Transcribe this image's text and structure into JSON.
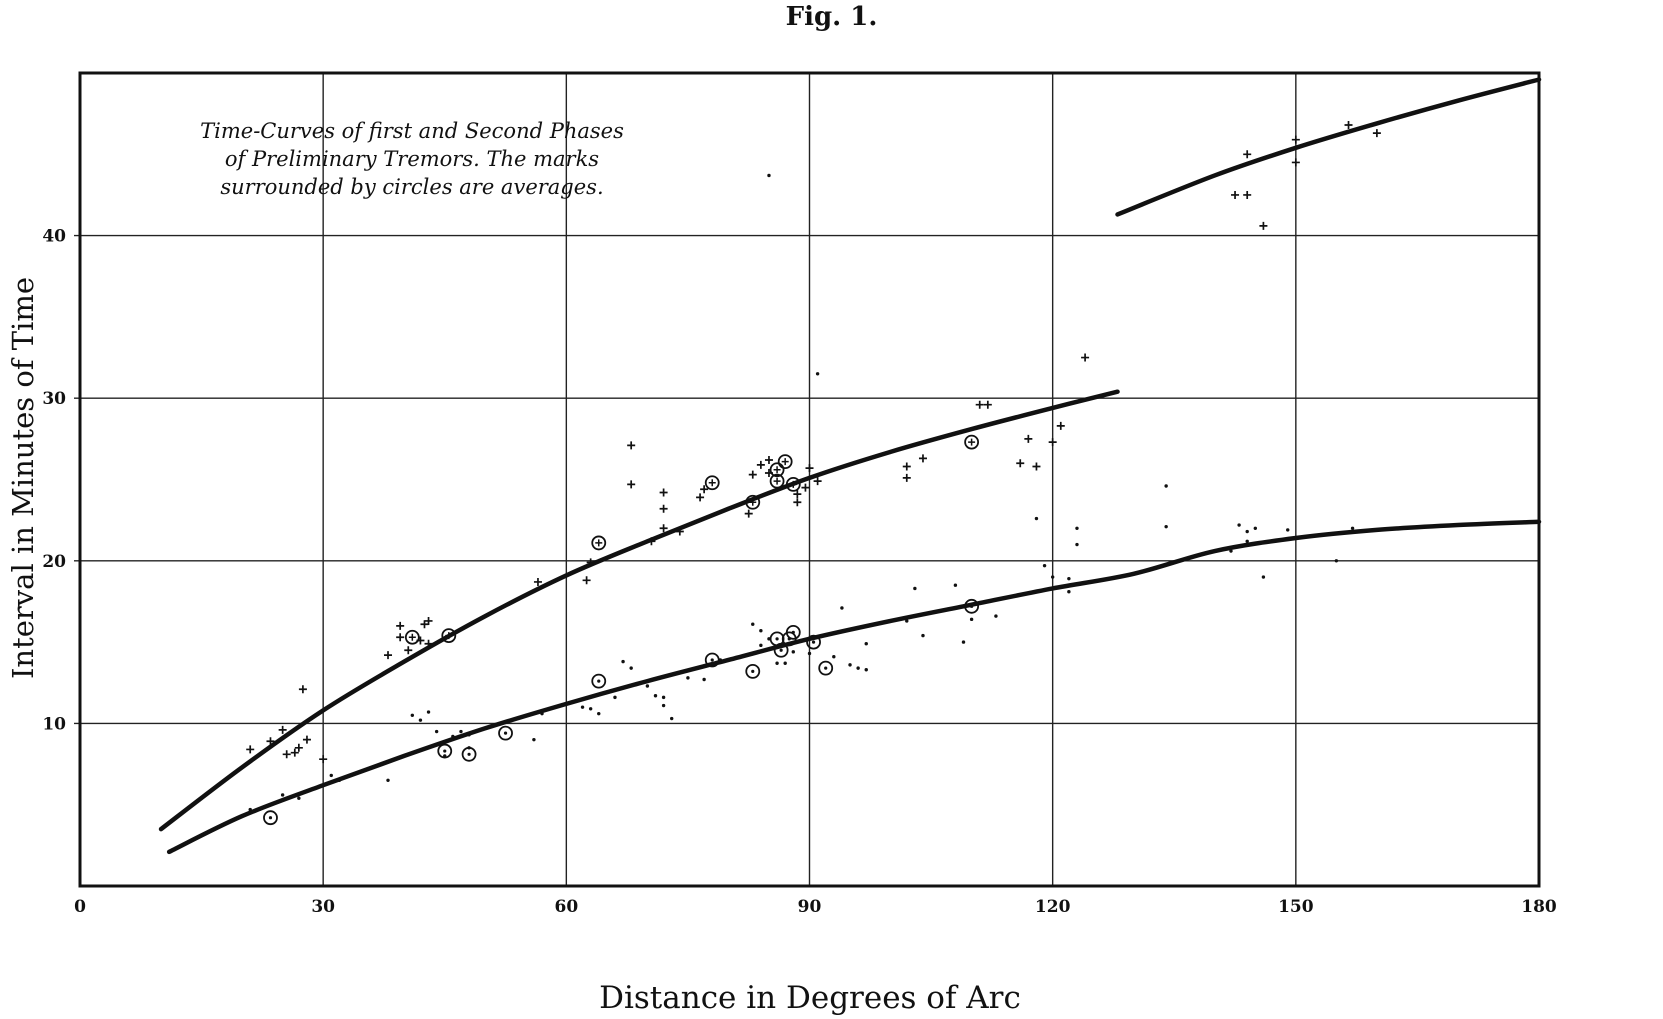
{
  "figure_label": "Fig. 1.",
  "chart_data": {
    "type": "scatter",
    "title": "",
    "annotation": [
      "Time-Curves of first and Second Phases",
      "of Preliminary Tremors.    The marks",
      "surrounded by circles are averages."
    ],
    "xlabel": "Distance in Degrees of Arc",
    "ylabel": "Interval in Minutes of Time",
    "xlim": [
      0,
      180
    ],
    "ylim": [
      0,
      50
    ],
    "x_ticks": [
      {
        "value": 0,
        "label": "0"
      },
      {
        "value": 30,
        "label": "30"
      },
      {
        "value": 60,
        "label": "60"
      },
      {
        "value": 90,
        "label": "90"
      },
      {
        "value": 120,
        "label": "120"
      },
      {
        "value": 150,
        "label": "150"
      },
      {
        "value": 180,
        "label": "180"
      }
    ],
    "y_ticks": [
      {
        "value": 10,
        "label": "10"
      },
      {
        "value": 20,
        "label": "20"
      },
      {
        "value": 30,
        "label": "30"
      },
      {
        "value": 40,
        "label": "40"
      }
    ],
    "grid": true,
    "curves": [
      {
        "id": "first-phase-curve",
        "x": [
          10,
          20,
          30,
          40,
          50,
          60,
          70,
          80,
          90,
          100,
          110,
          120,
          128
        ],
        "y": [
          3.5,
          7.3,
          10.8,
          13.8,
          16.6,
          19.1,
          21.2,
          23.2,
          25.1,
          26.7,
          28.1,
          29.4,
          30.4
        ]
      },
      {
        "id": "first-phase-late-curve",
        "x": [
          128,
          140,
          150,
          160,
          170,
          180
        ],
        "y": [
          41.3,
          43.7,
          45.4,
          46.9,
          48.3,
          49.6
        ]
      },
      {
        "id": "second-phase-curve",
        "x": [
          11,
          20,
          30,
          40,
          50,
          60,
          70,
          80,
          90,
          100,
          110,
          120,
          130,
          140,
          150,
          160,
          170,
          180
        ],
        "y": [
          2.1,
          4.3,
          6.2,
          8.0,
          9.7,
          11.2,
          12.6,
          13.9,
          15.2,
          16.3,
          17.3,
          18.3,
          19.2,
          20.6,
          21.4,
          21.9,
          22.2,
          22.4
        ]
      }
    ],
    "series": [
      {
        "marker": "plus",
        "points": [
          [
            21,
            8.4
          ],
          [
            23.5,
            8.9
          ],
          [
            25,
            9.6
          ],
          [
            25.5,
            8.1
          ],
          [
            26.5,
            8.2
          ],
          [
            27,
            8.5
          ],
          [
            27.5,
            12.1
          ],
          [
            28,
            9.0
          ],
          [
            30,
            7.8
          ],
          [
            38,
            14.2
          ],
          [
            39.5,
            15.3
          ],
          [
            39.5,
            16.0
          ],
          [
            40.5,
            14.5
          ],
          [
            42,
            15.1
          ],
          [
            42.5,
            16.1
          ],
          [
            43,
            16.3
          ],
          [
            43,
            14.9
          ],
          [
            56.5,
            18.7
          ],
          [
            62.5,
            18.8
          ],
          [
            63,
            19.9
          ],
          [
            68,
            27.1
          ],
          [
            68,
            24.7
          ],
          [
            70.5,
            21.2
          ],
          [
            72,
            22.0
          ],
          [
            72,
            23.2
          ],
          [
            72,
            24.2
          ],
          [
            74,
            21.8
          ],
          [
            76.5,
            23.9
          ],
          [
            77,
            24.4
          ],
          [
            82.5,
            22.9
          ],
          [
            83,
            25.3
          ],
          [
            84,
            25.9
          ],
          [
            85,
            26.2
          ],
          [
            85,
            25.4
          ],
          [
            88.5,
            24.1
          ],
          [
            88.5,
            23.6
          ],
          [
            89.5,
            24.5
          ],
          [
            90,
            25.7
          ],
          [
            91,
            24.9
          ],
          [
            102,
            25.1
          ],
          [
            102,
            25.8
          ],
          [
            104,
            26.3
          ],
          [
            111,
            29.6
          ],
          [
            112,
            29.6
          ],
          [
            116,
            26.0
          ],
          [
            117,
            27.5
          ],
          [
            118,
            25.8
          ],
          [
            120,
            27.3
          ],
          [
            121,
            28.3
          ],
          [
            124,
            32.5
          ],
          [
            142.5,
            42.5
          ],
          [
            144,
            45.0
          ],
          [
            144,
            42.5
          ],
          [
            146,
            40.6
          ],
          [
            150,
            45.9
          ],
          [
            150,
            44.5
          ],
          [
            156.5,
            46.8
          ],
          [
            160,
            46.3
          ]
        ]
      },
      {
        "marker": "dot",
        "points": [
          [
            21,
            4.7
          ],
          [
            25,
            5.6
          ],
          [
            27,
            5.4
          ],
          [
            31,
            6.8
          ],
          [
            32,
            6.5
          ],
          [
            38,
            6.5
          ],
          [
            41,
            10.5
          ],
          [
            42,
            10.2
          ],
          [
            43,
            10.7
          ],
          [
            44,
            9.5
          ],
          [
            45,
            8.0
          ],
          [
            46,
            9.2
          ],
          [
            47,
            9.5
          ],
          [
            48,
            9.3
          ],
          [
            48,
            8.5
          ],
          [
            56,
            9.0
          ],
          [
            57,
            10.6
          ],
          [
            62,
            11.0
          ],
          [
            63,
            10.9
          ],
          [
            64,
            10.6
          ],
          [
            66,
            11.6
          ],
          [
            67,
            13.8
          ],
          [
            68,
            13.4
          ],
          [
            70,
            12.3
          ],
          [
            71,
            11.7
          ],
          [
            72,
            11.6
          ],
          [
            72,
            11.1
          ],
          [
            73,
            10.3
          ],
          [
            75,
            12.8
          ],
          [
            77,
            12.7
          ],
          [
            79,
            13.9
          ],
          [
            83,
            16.1
          ],
          [
            84,
            15.7
          ],
          [
            84,
            14.8
          ],
          [
            85,
            15.2
          ],
          [
            86,
            13.7
          ],
          [
            87,
            13.7
          ],
          [
            88,
            14.4
          ],
          [
            89,
            15.1
          ],
          [
            90,
            14.3
          ],
          [
            93,
            14.1
          ],
          [
            94,
            17.1
          ],
          [
            95,
            13.6
          ],
          [
            96,
            13.4
          ],
          [
            97,
            13.3
          ],
          [
            97,
            14.9
          ],
          [
            102,
            16.3
          ],
          [
            103,
            18.3
          ],
          [
            104,
            15.4
          ],
          [
            108,
            18.5
          ],
          [
            109,
            15.0
          ],
          [
            110,
            16.4
          ],
          [
            113,
            16.6
          ],
          [
            118,
            22.6
          ],
          [
            119,
            19.7
          ],
          [
            120,
            19.0
          ],
          [
            122,
            18.9
          ],
          [
            122,
            18.1
          ],
          [
            123,
            22.0
          ],
          [
            123,
            21.0
          ],
          [
            134,
            24.6
          ],
          [
            134,
            22.1
          ],
          [
            142,
            20.6
          ],
          [
            143,
            22.2
          ],
          [
            144,
            21.8
          ],
          [
            144,
            21.2
          ],
          [
            145,
            22.0
          ],
          [
            146,
            19.0
          ],
          [
            149,
            21.9
          ],
          [
            155,
            20.0
          ],
          [
            157,
            22.0
          ],
          [
            88,
            24.7
          ],
          [
            85,
            43.7
          ],
          [
            91,
            31.5
          ]
        ]
      },
      {
        "marker": "circle-plus",
        "points": [
          [
            41,
            15.3
          ],
          [
            45.5,
            15.4
          ],
          [
            64,
            21.1
          ],
          [
            78,
            24.8
          ],
          [
            83,
            23.6
          ],
          [
            86,
            25.6
          ],
          [
            86,
            24.9
          ],
          [
            87,
            26.1
          ],
          [
            88,
            24.7
          ],
          [
            110,
            27.3
          ]
        ]
      },
      {
        "marker": "circle-dot",
        "points": [
          [
            23.5,
            4.2
          ],
          [
            45,
            8.3
          ],
          [
            48,
            8.1
          ],
          [
            52.5,
            9.4
          ],
          [
            64,
            12.6
          ],
          [
            78,
            13.9
          ],
          [
            83,
            13.2
          ],
          [
            86,
            15.2
          ],
          [
            86.5,
            14.5
          ],
          [
            87.5,
            15.2
          ],
          [
            88,
            15.6
          ],
          [
            90.5,
            15.0
          ],
          [
            92,
            13.4
          ],
          [
            110,
            17.2
          ]
        ]
      }
    ]
  }
}
